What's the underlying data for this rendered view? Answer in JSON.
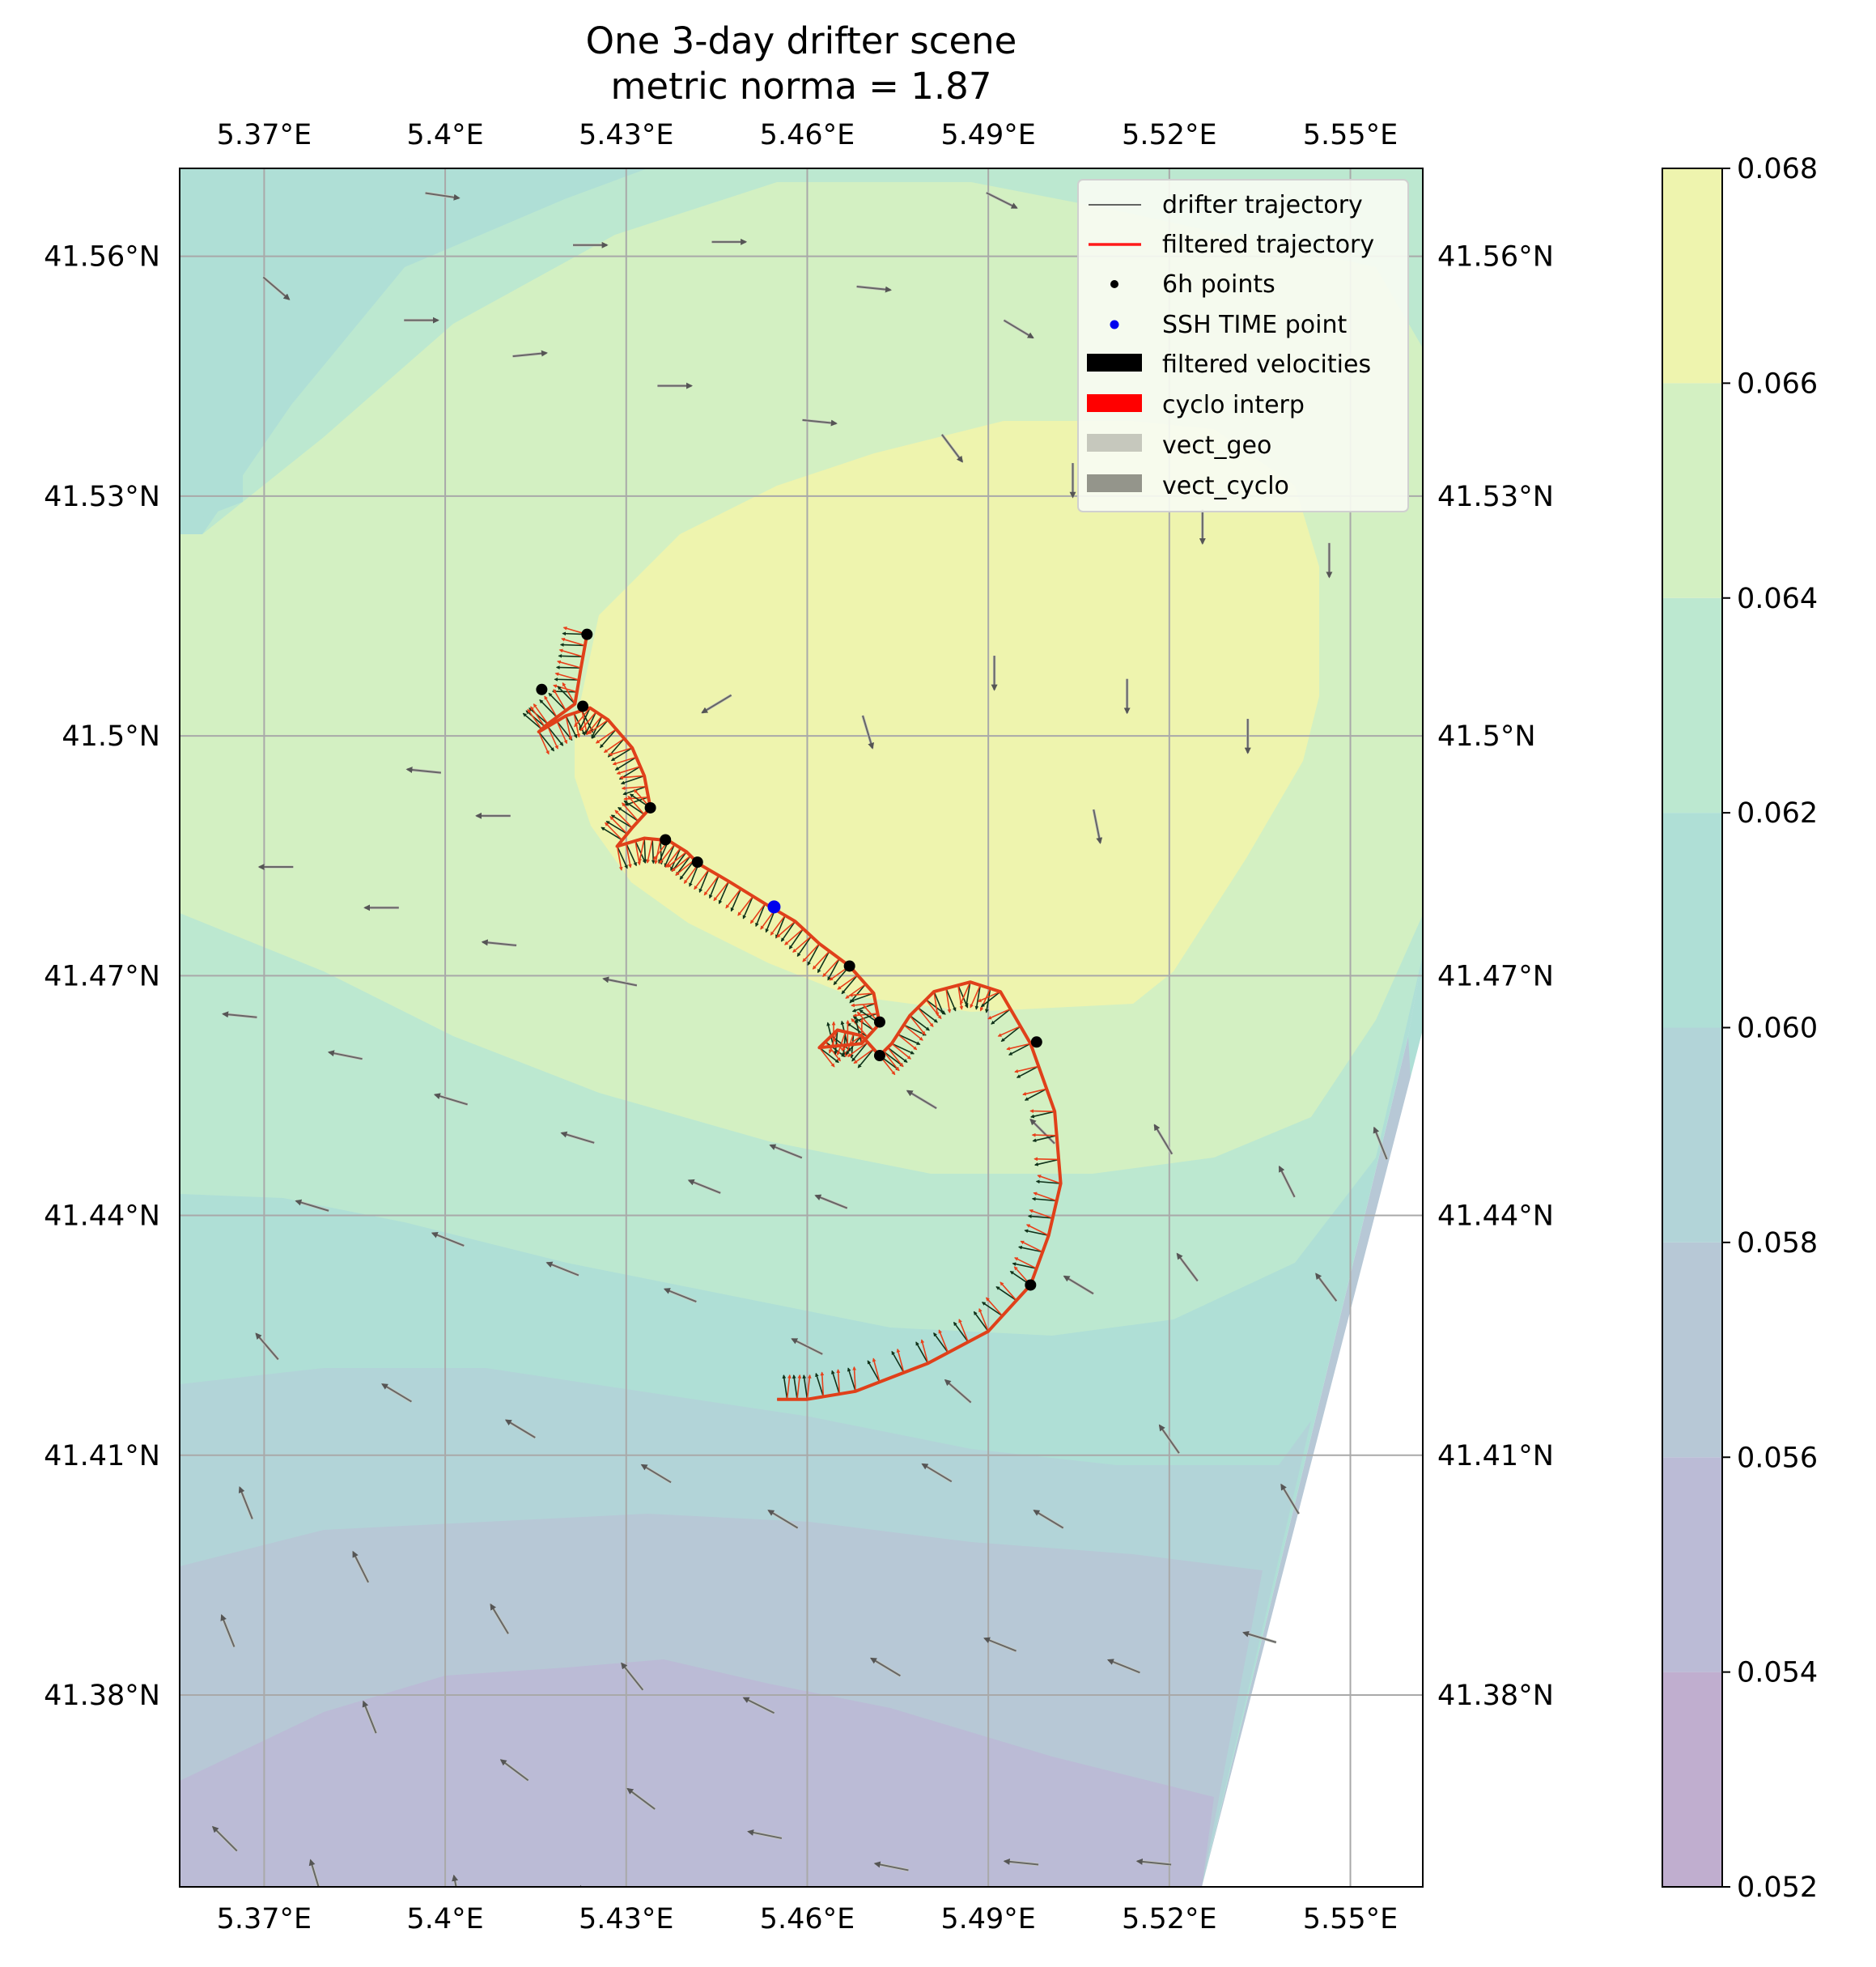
{
  "chart_data": {
    "type": "map",
    "title": "One 3-day drifter scene",
    "subtitle": "metric norma = 1.87",
    "xlim": [
      5.356,
      5.562
    ],
    "ylim": [
      41.356,
      41.571
    ],
    "x_ticks": [
      5.37,
      5.4,
      5.43,
      5.46,
      5.49,
      5.52,
      5.55
    ],
    "y_ticks": [
      41.38,
      41.41,
      41.44,
      41.47,
      41.5,
      41.53,
      41.56
    ],
    "x_tick_labels": [
      "5.37°E",
      "5.4°E",
      "5.43°E",
      "5.46°E",
      "5.49°E",
      "5.52°E",
      "5.55°E"
    ],
    "y_tick_labels": [
      "41.38°N",
      "41.41°N",
      "41.44°N",
      "41.47°N",
      "41.5°N",
      "41.53°N",
      "41.56°N"
    ],
    "grid": true,
    "colorbar": {
      "levels": [
        0.052,
        0.054,
        0.056,
        0.058,
        0.06,
        0.062,
        0.064,
        0.066,
        0.068
      ],
      "tick_labels": [
        "0.052",
        "0.054",
        "0.056",
        "0.058",
        "0.060",
        "0.062",
        "0.064",
        "0.066",
        "0.068"
      ],
      "colors": [
        "#c0aecf",
        "#bbbbd6",
        "#b7c8d6",
        "#b2d4d8",
        "#afdfd6",
        "#bce8d0",
        "#d3f0c2",
        "#eef4ae"
      ]
    },
    "legend": {
      "placement": "top-right",
      "entries": [
        "drifter trajectory",
        "filtered trajectory",
        "6h points",
        "SSH TIME point",
        "filtered velocities",
        "cyclo interp",
        "vect_geo",
        "vect_cyclo"
      ]
    },
    "trajectory": [
      [
        5.4235,
        41.5127
      ],
      [
        5.4225,
        41.5085
      ],
      [
        5.4215,
        41.504
      ],
      [
        5.417,
        41.5015
      ],
      [
        5.4155,
        41.5005
      ],
      [
        5.42,
        41.5025
      ],
      [
        5.424,
        41.5035
      ],
      [
        5.427,
        41.502
      ],
      [
        5.431,
        41.4985
      ],
      [
        5.433,
        41.495
      ],
      [
        5.434,
        41.491
      ],
      [
        5.431,
        41.4885
      ],
      [
        5.4285,
        41.4862
      ],
      [
        5.433,
        41.4872
      ],
      [
        5.437,
        41.4869
      ],
      [
        5.44,
        41.4855
      ],
      [
        5.442,
        41.484
      ],
      [
        5.447,
        41.4818
      ],
      [
        5.453,
        41.479
      ],
      [
        5.458,
        41.4768
      ],
      [
        5.462,
        41.474
      ],
      [
        5.467,
        41.4712
      ],
      [
        5.471,
        41.4678
      ],
      [
        5.472,
        41.464
      ],
      [
        5.469,
        41.4615
      ],
      [
        5.462,
        41.461
      ],
      [
        5.465,
        41.4632
      ],
      [
        5.469,
        41.4625
      ],
      [
        5.472,
        41.46
      ],
      [
        5.474,
        41.4615
      ],
      [
        5.477,
        41.465
      ],
      [
        5.481,
        41.468
      ],
      [
        5.487,
        41.4692
      ],
      [
        5.492,
        41.468
      ],
      [
        5.497,
        41.4615
      ],
      [
        5.501,
        41.453
      ],
      [
        5.502,
        41.444
      ],
      [
        5.5,
        41.4375
      ],
      [
        5.497,
        41.4313
      ],
      [
        5.49,
        41.4255
      ],
      [
        5.48,
        41.4215
      ],
      [
        5.468,
        41.418
      ],
      [
        5.46,
        41.417
      ],
      [
        5.455,
        41.417
      ]
    ],
    "six_hour_points": [
      [
        5.4235,
        41.5127
      ],
      [
        5.416,
        41.5058
      ],
      [
        5.4228,
        41.5037
      ],
      [
        5.434,
        41.491
      ],
      [
        5.4365,
        41.487
      ],
      [
        5.4418,
        41.4842
      ],
      [
        5.467,
        41.4712
      ],
      [
        5.472,
        41.4642
      ],
      [
        5.472,
        41.46
      ],
      [
        5.498,
        41.4617
      ],
      [
        5.497,
        41.4313
      ]
    ],
    "ssh_time_point": [
      5.4545,
      41.4786
    ],
    "velocity_field_lonlat_uv": [
      [
        5.3995,
        41.5676,
        1.0,
        -0.15
      ],
      [
        5.424,
        41.5614,
        1.0,
        0.0
      ],
      [
        5.447,
        41.5618,
        1.0,
        0.0
      ],
      [
        5.4922,
        41.567,
        1.0,
        -0.5
      ],
      [
        5.471,
        41.556,
        1.0,
        -0.1
      ],
      [
        5.495,
        41.5509,
        1.0,
        -0.6
      ],
      [
        5.372,
        41.556,
        0.7,
        -0.6
      ],
      [
        5.396,
        41.552,
        0.9,
        0.0
      ],
      [
        5.414,
        41.5477,
        1.0,
        0.1
      ],
      [
        5.438,
        41.5438,
        1.0,
        0.0
      ],
      [
        5.462,
        41.5393,
        1.0,
        -0.1
      ],
      [
        5.484,
        41.536,
        0.6,
        -0.8
      ],
      [
        5.504,
        41.532,
        0.0,
        -1.0
      ],
      [
        5.5255,
        41.5262,
        0.0,
        -1.0
      ],
      [
        5.5465,
        41.522,
        0.0,
        -1.0
      ],
      [
        5.513,
        41.505,
        0.0,
        -1.0
      ],
      [
        5.533,
        41.5,
        0.0,
        -1.0
      ],
      [
        5.491,
        41.5079,
        0.0,
        -1.0
      ],
      [
        5.47,
        41.5005,
        0.3,
        -1.0
      ],
      [
        5.508,
        41.4887,
        0.2,
        -1.0
      ],
      [
        5.445,
        41.504,
        -0.5,
        -0.3
      ],
      [
        5.3965,
        41.4956,
        -1.0,
        0.1
      ],
      [
        5.408,
        41.49,
        -1.0,
        0.0
      ],
      [
        5.372,
        41.4836,
        -1.0,
        0.0
      ],
      [
        5.3895,
        41.4785,
        -1.0,
        0.0
      ],
      [
        5.409,
        41.474,
        -1.0,
        0.1
      ],
      [
        5.429,
        41.4692,
        -1.0,
        0.2
      ],
      [
        5.366,
        41.465,
        -1.0,
        0.1
      ],
      [
        5.3835,
        41.46,
        -1.0,
        0.2
      ],
      [
        5.401,
        41.4545,
        -1.0,
        0.3
      ],
      [
        5.422,
        41.4497,
        -1.0,
        0.3
      ],
      [
        5.443,
        41.4436,
        -1.0,
        0.4
      ],
      [
        5.464,
        41.4417,
        -1.0,
        0.4
      ],
      [
        5.479,
        41.4545,
        -1.0,
        0.6
      ],
      [
        5.499,
        41.4505,
        -0.8,
        0.8
      ],
      [
        5.519,
        41.4495,
        -0.6,
        1.0
      ],
      [
        5.5395,
        41.4442,
        -0.5,
        1.0
      ],
      [
        5.555,
        41.449,
        -0.4,
        1.0
      ],
      [
        5.4565,
        41.448,
        -1.0,
        0.4
      ],
      [
        5.378,
        41.4412,
        -1.0,
        0.3
      ],
      [
        5.4005,
        41.437,
        -1.0,
        0.4
      ],
      [
        5.4195,
        41.4333,
        -1.0,
        0.4
      ],
      [
        5.439,
        41.43,
        -1.0,
        0.4
      ],
      [
        5.46,
        41.4236,
        -1.0,
        0.5
      ],
      [
        5.485,
        41.418,
        -0.8,
        0.7
      ],
      [
        5.505,
        41.4313,
        -1.0,
        0.6
      ],
      [
        5.523,
        41.4335,
        -0.6,
        0.8
      ],
      [
        5.546,
        41.431,
        -0.6,
        0.8
      ],
      [
        5.3705,
        41.4236,
        -0.6,
        0.7
      ],
      [
        5.392,
        41.4178,
        -1.0,
        0.6
      ],
      [
        5.4125,
        41.4133,
        -1.0,
        0.6
      ],
      [
        5.435,
        41.4077,
        -1.0,
        0.6
      ],
      [
        5.456,
        41.402,
        -1.0,
        0.6
      ],
      [
        5.4815,
        41.4078,
        -1.0,
        0.6
      ],
      [
        5.5,
        41.402,
        -1.0,
        0.6
      ],
      [
        5.52,
        41.412,
        -0.7,
        1.0
      ],
      [
        5.54,
        41.4045,
        -0.6,
        1.0
      ],
      [
        5.367,
        41.404,
        -0.4,
        1.0
      ],
      [
        5.386,
        41.396,
        -0.5,
        1.0
      ],
      [
        5.409,
        41.3895,
        -0.6,
        1.0
      ],
      [
        5.431,
        41.3823,
        -0.8,
        1.0
      ],
      [
        5.452,
        41.3787,
        -1.0,
        0.5
      ],
      [
        5.473,
        41.3835,
        -1.0,
        0.6
      ],
      [
        5.492,
        41.3863,
        -1.0,
        0.4
      ],
      [
        5.5125,
        41.3836,
        -1.0,
        0.4
      ],
      [
        5.535,
        41.3872,
        -1.0,
        0.3
      ],
      [
        5.364,
        41.388,
        -0.4,
        1.0
      ],
      [
        5.3875,
        41.3772,
        -0.4,
        1.0
      ],
      [
        5.4115,
        41.3706,
        -0.8,
        0.6
      ],
      [
        5.4325,
        41.367,
        -0.8,
        0.6
      ],
      [
        5.453,
        41.3625,
        -1.0,
        0.2
      ],
      [
        5.474,
        41.3585,
        -1.0,
        0.2
      ],
      [
        5.4955,
        41.359,
        -1.0,
        0.1
      ],
      [
        5.5175,
        41.359,
        -1.0,
        0.1
      ],
      [
        5.3635,
        41.362,
        -0.6,
        0.6
      ],
      [
        5.3785,
        41.3573,
        -0.3,
        1.0
      ],
      [
        5.402,
        41.3553,
        -0.2,
        1.0
      ],
      [
        5.423,
        41.354,
        -0.2,
        1.0
      ]
    ]
  }
}
